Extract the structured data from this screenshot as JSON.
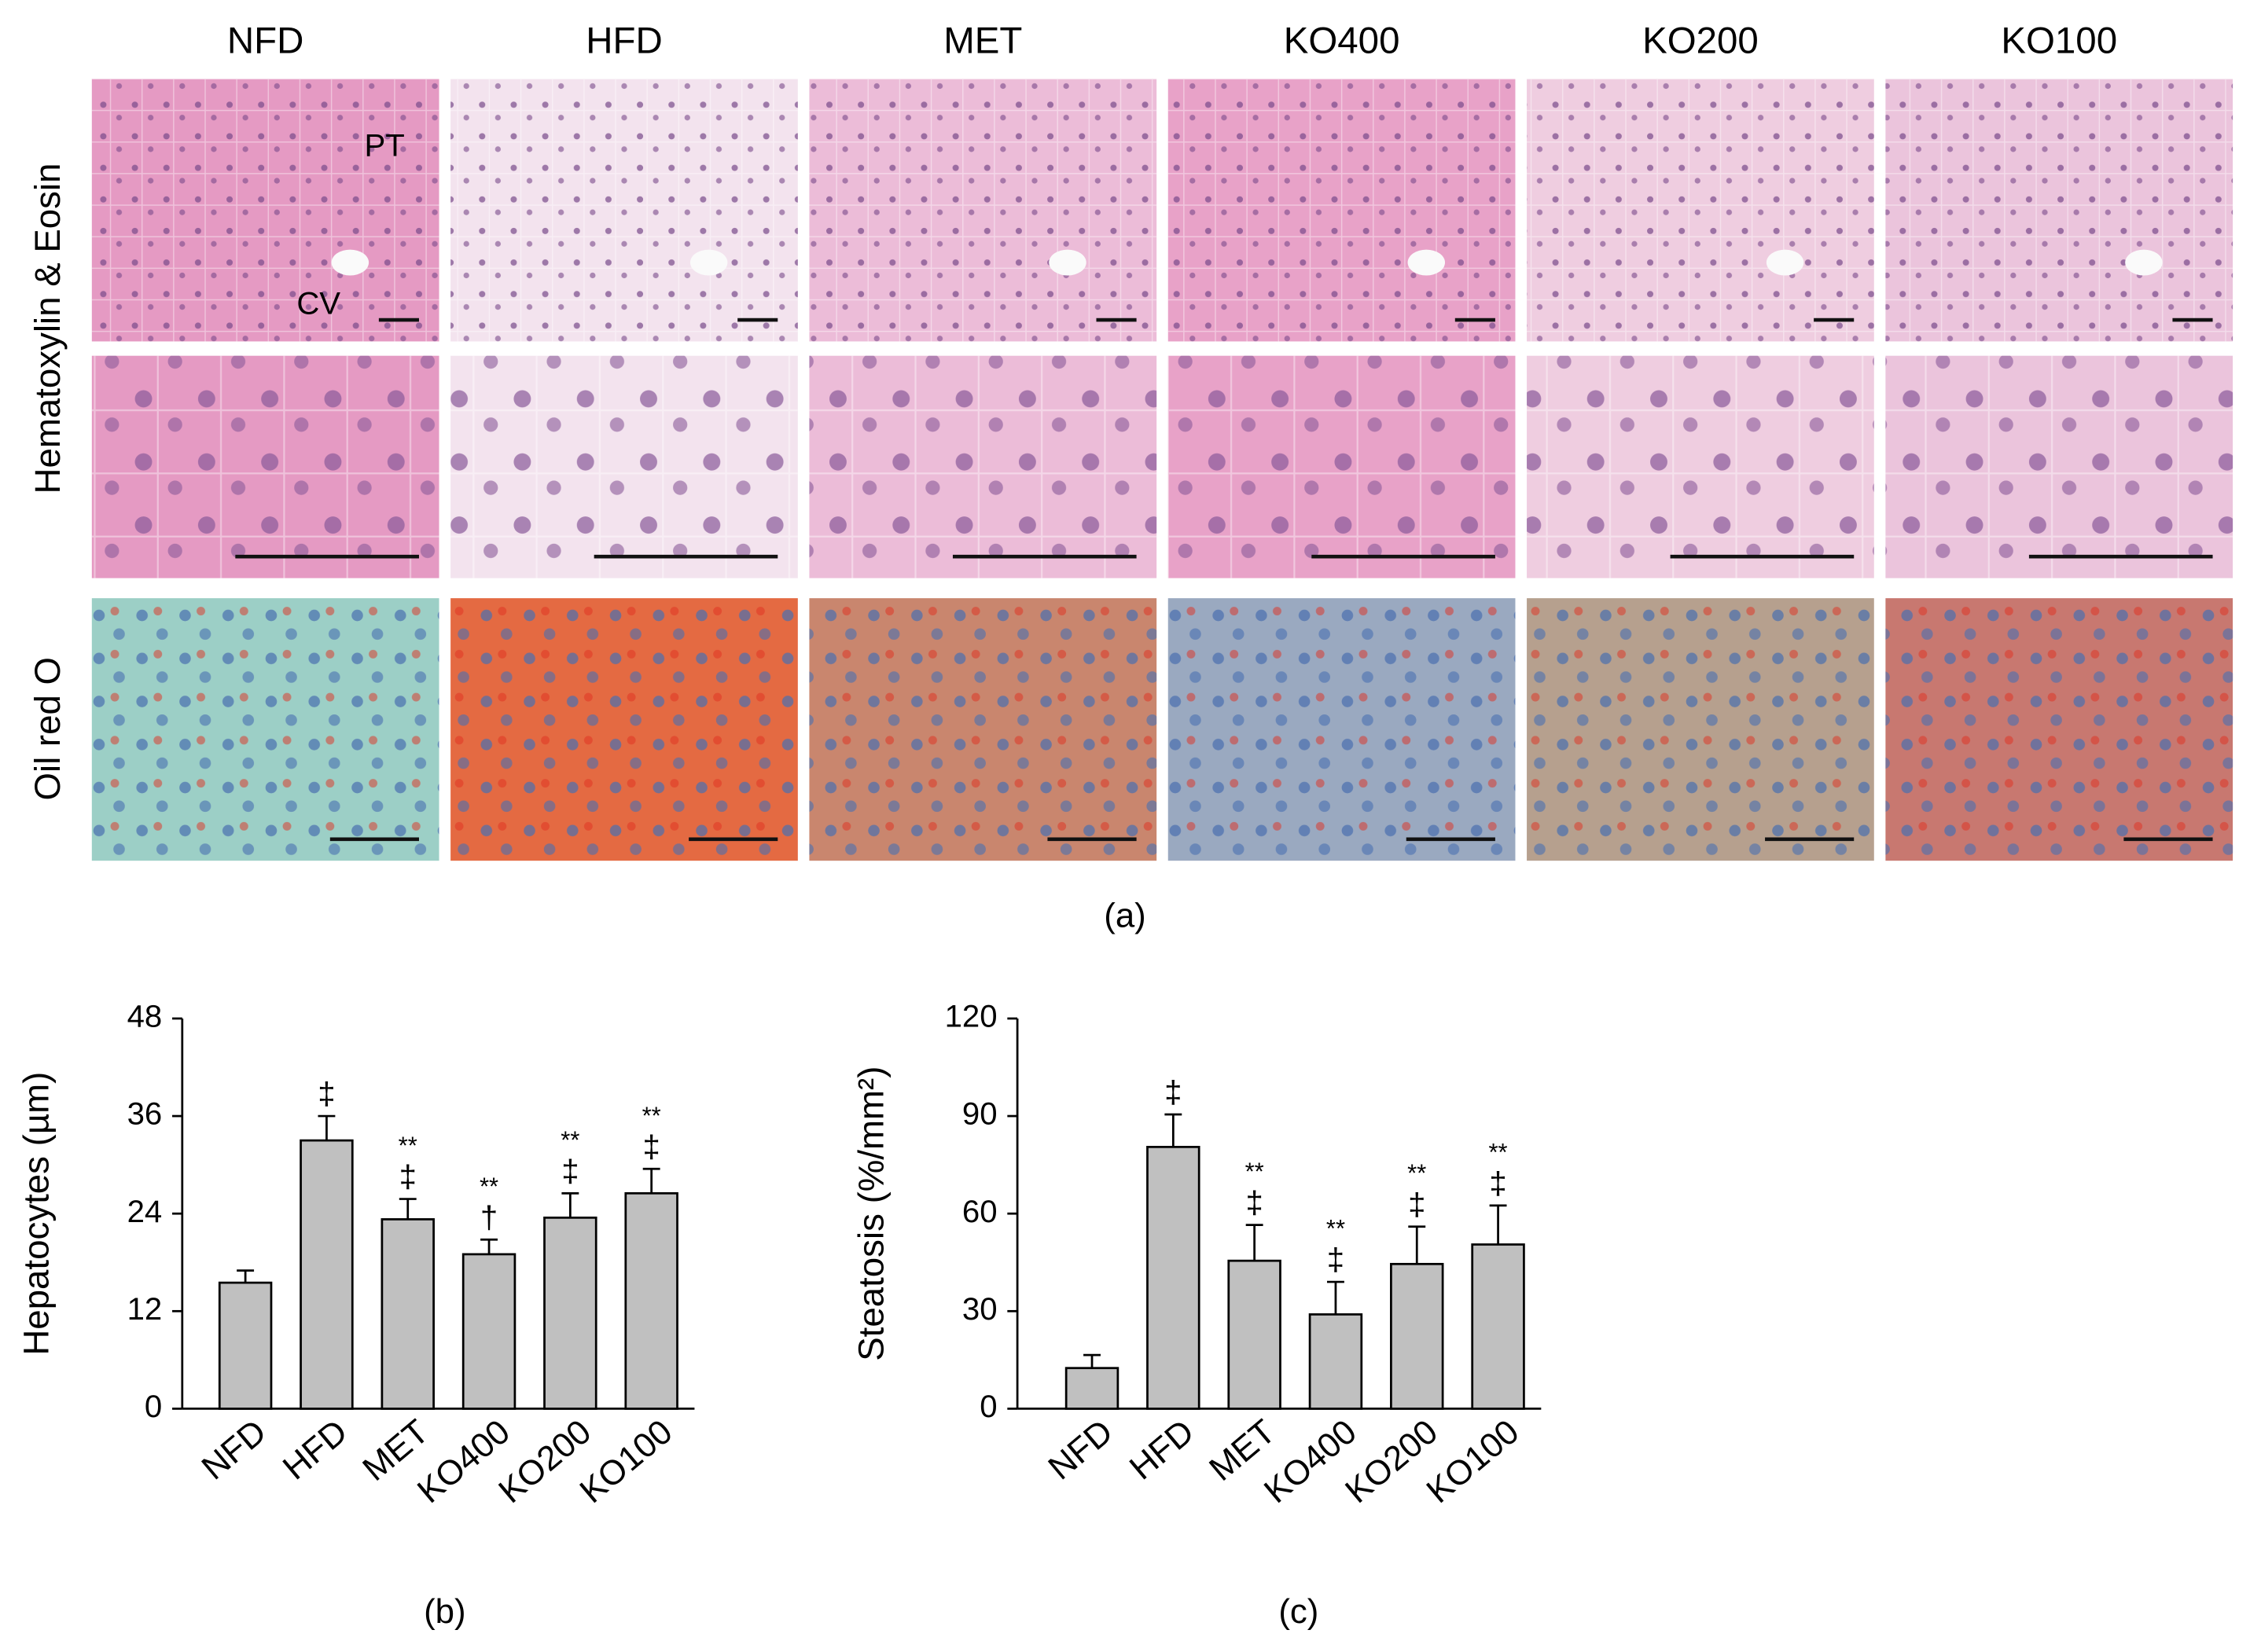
{
  "figure": {
    "columns": [
      "NFD",
      "HFD",
      "MET",
      "KO400",
      "KO200",
      "KO100"
    ],
    "rows": [
      "Hematoxylin & Eosin",
      "Oil red O"
    ],
    "annotations": [
      "PT",
      "CV"
    ],
    "panel_labels": [
      "(a)",
      "(b)",
      "(c)"
    ]
  },
  "chart_data": [
    {
      "type": "bar",
      "y_label": "Hepatocytes (µm)",
      "categories": [
        "NFD",
        "HFD",
        "MET",
        "KO400",
        "KO200",
        "KO100"
      ],
      "values": [
        15.5,
        33,
        23.3,
        19,
        23.5,
        26.5
      ],
      "errors": [
        1.5,
        3,
        2.5,
        1.8,
        3,
        3
      ],
      "significance": [
        null,
        [
          "‡"
        ],
        [
          "**",
          "‡"
        ],
        [
          "**",
          "†"
        ],
        [
          "**",
          "‡"
        ],
        [
          "**",
          "‡"
        ]
      ],
      "color": "#c0c0c0",
      "ylim": [
        0,
        48
      ],
      "yticks": [
        0,
        12,
        24,
        36,
        48
      ]
    },
    {
      "type": "bar",
      "y_label": "Steatosis (%/mm²)",
      "categories": [
        "NFD",
        "HFD",
        "MET",
        "KO400",
        "KO200",
        "KO100"
      ],
      "values": [
        12.5,
        80.5,
        45.5,
        29,
        44.5,
        50.5
      ],
      "errors": [
        4,
        10,
        11,
        10,
        11.5,
        12
      ],
      "significance": [
        null,
        [
          "‡"
        ],
        [
          "**",
          "‡"
        ],
        [
          "**",
          "‡"
        ],
        [
          "**",
          "‡"
        ],
        [
          "**",
          "‡"
        ]
      ],
      "color": "#c0c0c0",
      "ylim": [
        0,
        120
      ],
      "yticks": [
        0,
        30,
        60,
        90,
        120
      ]
    }
  ]
}
